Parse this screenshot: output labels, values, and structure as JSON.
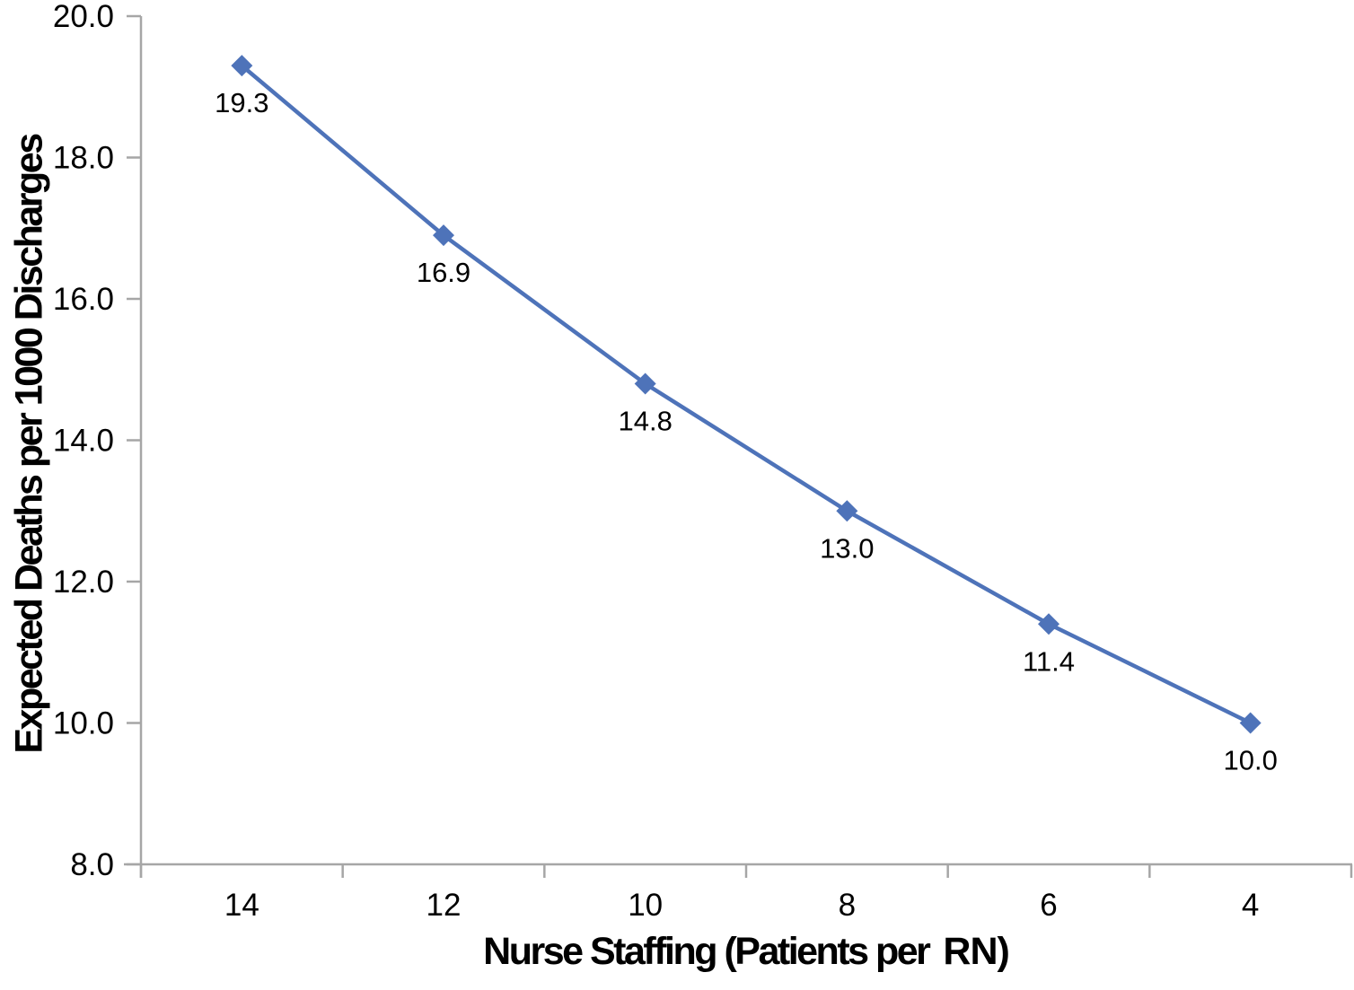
{
  "figure": {
    "background_color": "#ffffff",
    "text_color": "#000000",
    "axis_line_color": "#a6a6a6",
    "series_color": "#4e73b9"
  },
  "chart_data": {
    "type": "line",
    "title": "",
    "xlabel": "Nurse Staffing (Patients per  RN)",
    "xlabel_parts": {
      "main": "Nurse Staffing (Patients per",
      "suffix": "RN)"
    },
    "ylabel": "Expected Deaths per 1000 Discharges",
    "categories": [
      "14",
      "12",
      "10",
      "8",
      "6",
      "4"
    ],
    "series": [
      {
        "values": [
          19.3,
          16.9,
          14.8,
          13.0,
          11.4,
          10.0
        ],
        "data_labels": [
          "19.3",
          "16.9",
          "14.8",
          "13.0",
          "11.4",
          "10.0"
        ],
        "color": "#4e73b9",
        "marker": "diamond",
        "line_width": 4.5
      }
    ],
    "ylim": [
      8.0,
      20.0
    ],
    "ytick_step": 2.0,
    "ytick_labels": [
      "8.0",
      "10.0",
      "12.0",
      "14.0",
      "16.0",
      "18.0",
      "20.0"
    ],
    "grid": false,
    "legend": "none",
    "data_labels_position": "below"
  }
}
